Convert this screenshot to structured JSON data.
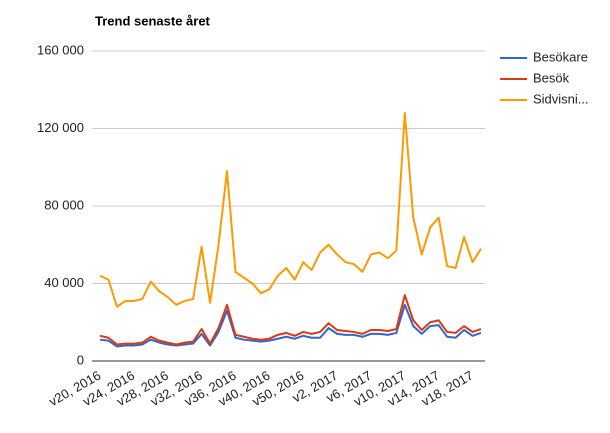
{
  "chart_data": {
    "type": "line",
    "title": "Trend senaste året",
    "categories": [
      "v20, 2016",
      null,
      null,
      null,
      "v24, 2016",
      null,
      null,
      null,
      "v28, 2016",
      null,
      null,
      null,
      "v32, 2016",
      null,
      null,
      null,
      "v36, 2016",
      null,
      null,
      null,
      "v40, 2016",
      null,
      null,
      null,
      "v50, 2016",
      null,
      null,
      null,
      "v2, 2017",
      null,
      null,
      null,
      "v6, 2017",
      null,
      null,
      null,
      "v10, 2017",
      null,
      null,
      null,
      "v14, 2017",
      null,
      null,
      null,
      "v18, 2017",
      null
    ],
    "series": [
      {
        "name": "Besökare",
        "color": "#3366cc",
        "values": [
          11000,
          10500,
          7500,
          8000,
          8000,
          8500,
          11000,
          9500,
          8500,
          8000,
          8500,
          9000,
          14000,
          8000,
          15000,
          26000,
          12000,
          11000,
          10500,
          10000,
          10500,
          11500,
          12500,
          11500,
          13000,
          12000,
          12000,
          17000,
          14000,
          13500,
          13500,
          12500,
          14000,
          14000,
          13500,
          14500,
          29000,
          18000,
          14000,
          18000,
          18500,
          12500,
          12000,
          16000,
          13000,
          14500
        ]
      },
      {
        "name": "Besök",
        "color": "#dc3912",
        "values": [
          13000,
          12000,
          8500,
          9000,
          9000,
          9500,
          12500,
          10500,
          9500,
          8500,
          9500,
          10000,
          16500,
          9000,
          17000,
          29000,
          13500,
          12500,
          11500,
          11000,
          11500,
          13500,
          14500,
          13000,
          15000,
          14000,
          15000,
          19500,
          16000,
          15500,
          15000,
          14000,
          16000,
          16000,
          15500,
          16500,
          34000,
          21000,
          16000,
          20000,
          21000,
          15000,
          14500,
          18000,
          15000,
          16500
        ]
      },
      {
        "name": "Sidvisni...",
        "color": "#ff9900",
        "values": [
          44000,
          42000,
          28000,
          31000,
          31000,
          32000,
          41000,
          36000,
          33000,
          29000,
          31000,
          32000,
          59000,
          30000,
          60000,
          98000,
          46000,
          43000,
          40000,
          35000,
          37000,
          44000,
          48000,
          42000,
          51000,
          47000,
          56000,
          60000,
          55000,
          51000,
          50000,
          46000,
          55000,
          56000,
          53000,
          57000,
          128000,
          74000,
          55000,
          69000,
          74000,
          49000,
          48000,
          64000,
          51000,
          58000
        ]
      }
    ],
    "ylim": [
      0,
      160000
    ],
    "yticks": [
      0,
      {
        "value": 40000,
        "label": "40 000"
      },
      {
        "value": 80000,
        "label": "80 000"
      },
      {
        "value": 120000,
        "label": "120 000"
      },
      {
        "value": 160000,
        "label": "160 000"
      }
    ],
    "grid": true,
    "legend": "right"
  }
}
